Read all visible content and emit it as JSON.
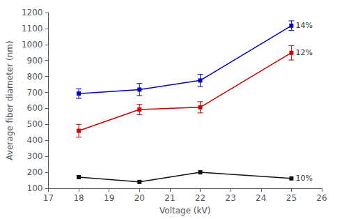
{
  "chart_data": {
    "type": "line",
    "xlabel": "Voltage (kV)",
    "ylabel": "Average fiber diameter (nm)",
    "x": [
      18,
      20,
      22,
      25
    ],
    "series": [
      {
        "name": "14%",
        "color": "#0000cc",
        "values": [
          693,
          718,
          775,
          1118
        ],
        "yerr": [
          30,
          38,
          38,
          30
        ]
      },
      {
        "name": "12%",
        "color": "#cc0000",
        "values": [
          460,
          593,
          607,
          948
        ],
        "yerr": [
          40,
          32,
          35,
          45
        ]
      },
      {
        "name": "10%",
        "color": "#111111",
        "values": [
          170,
          140,
          200,
          162
        ]
      }
    ],
    "xlim": [
      17,
      26
    ],
    "ylim": [
      100,
      1200
    ],
    "xticks": [
      17,
      18,
      19,
      20,
      21,
      22,
      23,
      24,
      25,
      26
    ],
    "yticks": [
      100,
      200,
      300,
      400,
      500,
      600,
      700,
      800,
      900,
      1000,
      1100,
      1200
    ],
    "marker": "square",
    "grid": false
  }
}
